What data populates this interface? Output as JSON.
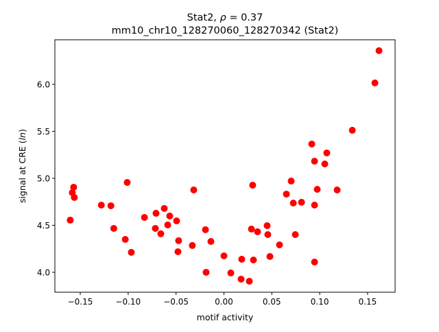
{
  "chart_data": {
    "type": "scatter",
    "title_line1": "Stat2, ρ = 0.37",
    "title_prefix": "Stat2, ",
    "title_rho": "ρ",
    "title_value": " = 0.37",
    "title_line2": "mm10_chr10_128270060_128270342 (Stat2)",
    "xlabel": "motif activity",
    "ylabel_prefix": "signal at CRE (",
    "ylabel_italic": "ln",
    "ylabel_suffix": ")",
    "xlim": [
      -0.1765,
      0.1787
    ],
    "ylim": [
      3.788,
      6.474
    ],
    "xticks": [
      -0.15,
      -0.1,
      -0.05,
      0.0,
      0.05,
      0.1,
      0.15
    ],
    "xtick_labels": [
      "−0.15",
      "−0.10",
      "−0.05",
      "0.00",
      "0.05",
      "0.10",
      "0.15"
    ],
    "yticks": [
      4.0,
      4.5,
      5.0,
      5.5,
      6.0
    ],
    "ytick_labels": [
      "4.0",
      "4.5",
      "5.0",
      "5.5",
      "6.0"
    ],
    "grid": false,
    "marker_color": "#ff0000",
    "points": [
      [
        -0.1605,
        4.555
      ],
      [
        -0.1583,
        4.847
      ],
      [
        -0.1569,
        4.905
      ],
      [
        -0.1562,
        4.796
      ],
      [
        -0.128,
        4.715
      ],
      [
        -0.118,
        4.708
      ],
      [
        -0.115,
        4.467
      ],
      [
        -0.103,
        4.35
      ],
      [
        -0.101,
        4.956
      ],
      [
        -0.0967,
        4.212
      ],
      [
        -0.083,
        4.584
      ],
      [
        -0.0716,
        4.467
      ],
      [
        -0.0709,
        4.628
      ],
      [
        -0.0659,
        4.41
      ],
      [
        -0.0623,
        4.679
      ],
      [
        -0.0587,
        4.504
      ],
      [
        -0.0566,
        4.599
      ],
      [
        -0.0494,
        4.547
      ],
      [
        -0.0473,
        4.336
      ],
      [
        -0.048,
        4.219
      ],
      [
        -0.033,
        4.285
      ],
      [
        -0.0315,
        4.876
      ],
      [
        -0.0193,
        4.453
      ],
      [
        -0.0186,
        4.0
      ],
      [
        -0.0136,
        4.328
      ],
      [
        0.0,
        4.175
      ],
      [
        0.0072,
        3.993
      ],
      [
        0.0179,
        3.927
      ],
      [
        0.0186,
        4.139
      ],
      [
        0.0265,
        3.905
      ],
      [
        0.0287,
        4.46
      ],
      [
        0.03,
        4.927
      ],
      [
        0.0308,
        4.131
      ],
      [
        0.0351,
        4.431
      ],
      [
        0.0451,
        4.496
      ],
      [
        0.0458,
        4.401
      ],
      [
        0.048,
        4.168
      ],
      [
        0.058,
        4.292
      ],
      [
        0.0652,
        4.832
      ],
      [
        0.0702,
        4.971
      ],
      [
        0.0724,
        4.737
      ],
      [
        0.0745,
        4.401
      ],
      [
        0.081,
        4.745
      ],
      [
        0.0917,
        5.365
      ],
      [
        0.0946,
        5.182
      ],
      [
        0.0946,
        4.715
      ],
      [
        0.0946,
        4.109
      ],
      [
        0.0974,
        4.883
      ],
      [
        0.1053,
        5.153
      ],
      [
        0.1074,
        5.27
      ],
      [
        0.1182,
        4.876
      ],
      [
        0.134,
        5.511
      ],
      [
        0.1576,
        6.015
      ],
      [
        0.1619,
        6.358
      ]
    ]
  }
}
